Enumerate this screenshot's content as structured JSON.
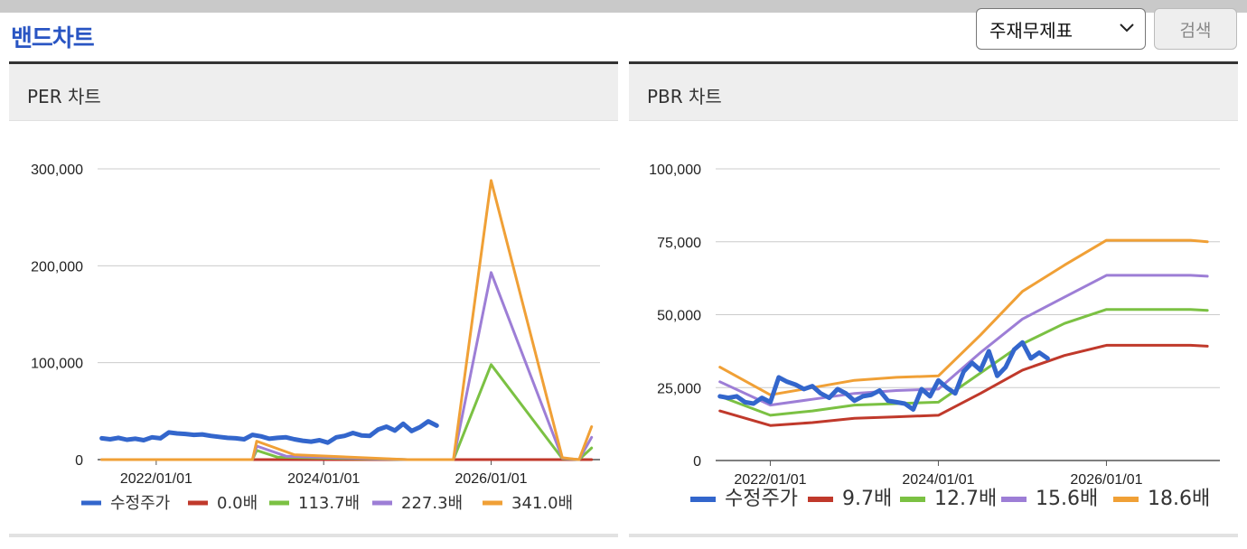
{
  "header": {
    "title": "밴드차트",
    "select_value": "주재무제표",
    "search_label": "검색"
  },
  "chart_data": [
    {
      "type": "line",
      "title": "PER 차트",
      "ylim": [
        0,
        300000
      ],
      "y_ticks": [
        0,
        100000,
        200000,
        300000
      ],
      "y_tick_labels": [
        "0",
        "100,000",
        "200,000",
        "300,000"
      ],
      "xlim": [
        2021.3,
        2027.3
      ],
      "x_ticks": [
        2022,
        2024,
        2026
      ],
      "x_tick_labels": [
        "2022/01/01",
        "2024/01/01",
        "2026/01/01"
      ],
      "series": [
        {
          "name": "수정주가",
          "color": "#3366cc",
          "width": 5,
          "x": [
            2021.35,
            2021.45,
            2021.55,
            2021.65,
            2021.75,
            2021.85,
            2021.95,
            2022.05,
            2022.15,
            2022.25,
            2022.35,
            2022.45,
            2022.55,
            2022.65,
            2022.75,
            2022.85,
            2022.95,
            2023.05,
            2023.15,
            2023.25,
            2023.35,
            2023.45,
            2023.55,
            2023.65,
            2023.75,
            2023.85,
            2023.95,
            2024.05,
            2024.15,
            2024.25,
            2024.35,
            2024.45,
            2024.55,
            2024.65,
            2024.75,
            2024.85,
            2024.95,
            2025.05,
            2025.15,
            2025.25,
            2025.35
          ],
          "y": [
            22000,
            21000,
            22500,
            20500,
            21500,
            20000,
            23000,
            22000,
            28000,
            27000,
            26500,
            25500,
            26000,
            24500,
            23500,
            22500,
            22000,
            21000,
            25500,
            24000,
            21500,
            22500,
            23000,
            21000,
            19500,
            18500,
            20000,
            17500,
            23000,
            24500,
            27500,
            25000,
            24500,
            31000,
            34000,
            30000,
            37000,
            29500,
            33500,
            39500,
            35000
          ]
        },
        {
          "name": "0.0배",
          "color": "#c0392b",
          "width": 3,
          "x": [
            2021.35,
            2022.5,
            2023.3,
            2024.0,
            2025.0,
            2025.6,
            2026.0,
            2026.4,
            2026.8,
            2027.0,
            2027.2
          ],
          "y": [
            0,
            0,
            0,
            0,
            0,
            0,
            0,
            0,
            0,
            0,
            0
          ]
        },
        {
          "name": "113.7배",
          "color": "#7bc143",
          "width": 3,
          "x": [
            2021.35,
            2023.15,
            2023.2,
            2023.45,
            2025.0,
            2025.55,
            2026.0,
            2026.85,
            2027.05,
            2027.2
          ],
          "y": [
            0,
            0,
            9500,
            2500,
            0,
            0,
            98000,
            1000,
            0,
            12000
          ]
        },
        {
          "name": "227.3배",
          "color": "#9d7ed6",
          "width": 3,
          "x": [
            2021.35,
            2023.15,
            2023.2,
            2023.55,
            2025.0,
            2025.55,
            2026.0,
            2026.85,
            2027.05,
            2027.2
          ],
          "y": [
            0,
            0,
            14000,
            3500,
            0,
            0,
            193000,
            1500,
            0,
            23000
          ]
        },
        {
          "name": "341.0배",
          "color": "#f0a036",
          "width": 3,
          "x": [
            2021.35,
            2023.15,
            2023.2,
            2023.65,
            2025.0,
            2025.55,
            2026.0,
            2026.85,
            2027.05,
            2027.2
          ],
          "y": [
            0,
            0,
            19000,
            5000,
            0,
            0,
            288000,
            2000,
            0,
            34000
          ]
        }
      ]
    },
    {
      "type": "line",
      "title": "PBR 차트",
      "ylim": [
        0,
        100000
      ],
      "y_ticks": [
        0,
        25000,
        50000,
        75000,
        100000
      ],
      "y_tick_labels": [
        "0",
        "25,000",
        "50,000",
        "75,000",
        "100,000"
      ],
      "xlim": [
        2021.35,
        2027.35
      ],
      "x_ticks": [
        2022,
        2024,
        2026
      ],
      "x_tick_labels": [
        "2022/01/01",
        "2024/01/01",
        "2026/01/01"
      ],
      "series": [
        {
          "name": "수정주가",
          "color": "#3366cc",
          "width": 5,
          "x": [
            2021.4,
            2021.5,
            2021.6,
            2021.7,
            2021.8,
            2021.9,
            2022.0,
            2022.1,
            2022.2,
            2022.3,
            2022.4,
            2022.5,
            2022.6,
            2022.7,
            2022.8,
            2022.9,
            2023.0,
            2023.1,
            2023.2,
            2023.3,
            2023.4,
            2023.5,
            2023.6,
            2023.7,
            2023.8,
            2023.9,
            2024.0,
            2024.1,
            2024.2,
            2024.3,
            2024.4,
            2024.5,
            2024.6,
            2024.7,
            2024.8,
            2024.9,
            2025.0,
            2025.1,
            2025.2,
            2025.3
          ],
          "y": [
            22000,
            21500,
            22000,
            20000,
            19500,
            21500,
            20000,
            28500,
            27000,
            26000,
            24500,
            25500,
            23000,
            21500,
            24500,
            23000,
            20500,
            22000,
            22500,
            24000,
            20500,
            20000,
            19500,
            17500,
            24500,
            22000,
            27500,
            25000,
            23000,
            30500,
            33500,
            31000,
            37500,
            29000,
            32000,
            38000,
            40500,
            35000,
            37000,
            35000
          ]
        },
        {
          "name": "9.7배",
          "color": "#c0392b",
          "width": 3,
          "x": [
            2021.4,
            2022.0,
            2022.5,
            2023.0,
            2023.5,
            2024.0,
            2024.5,
            2025.0,
            2025.5,
            2026.0,
            2026.5,
            2027.0,
            2027.2
          ],
          "y": [
            17000,
            12000,
            13000,
            14500,
            15000,
            15500,
            23000,
            31000,
            36000,
            39500,
            39500,
            39500,
            39200
          ]
        },
        {
          "name": "12.7배",
          "color": "#7bc143",
          "width": 3,
          "x": [
            2021.4,
            2022.0,
            2022.5,
            2023.0,
            2023.5,
            2024.0,
            2024.5,
            2025.0,
            2025.5,
            2026.0,
            2026.5,
            2027.0,
            2027.2
          ],
          "y": [
            22000,
            15500,
            17000,
            19000,
            19500,
            20000,
            30000,
            40000,
            47000,
            51800,
            51800,
            51800,
            51500
          ]
        },
        {
          "name": "15.6배",
          "color": "#9d7ed6",
          "width": 3,
          "x": [
            2021.4,
            2022.0,
            2022.5,
            2023.0,
            2023.5,
            2024.0,
            2024.5,
            2025.0,
            2025.5,
            2026.0,
            2026.5,
            2027.0,
            2027.2
          ],
          "y": [
            27000,
            19000,
            21000,
            23000,
            24000,
            24500,
            37000,
            48500,
            56000,
            63500,
            63500,
            63500,
            63200
          ]
        },
        {
          "name": "18.6배",
          "color": "#f0a036",
          "width": 3,
          "x": [
            2021.4,
            2022.0,
            2022.5,
            2023.0,
            2023.5,
            2024.0,
            2024.5,
            2025.0,
            2025.5,
            2026.0,
            2026.5,
            2027.0,
            2027.2
          ],
          "y": [
            32000,
            22500,
            25000,
            27500,
            28500,
            29000,
            43000,
            58000,
            67000,
            75500,
            75500,
            75500,
            75000
          ]
        }
      ]
    }
  ]
}
